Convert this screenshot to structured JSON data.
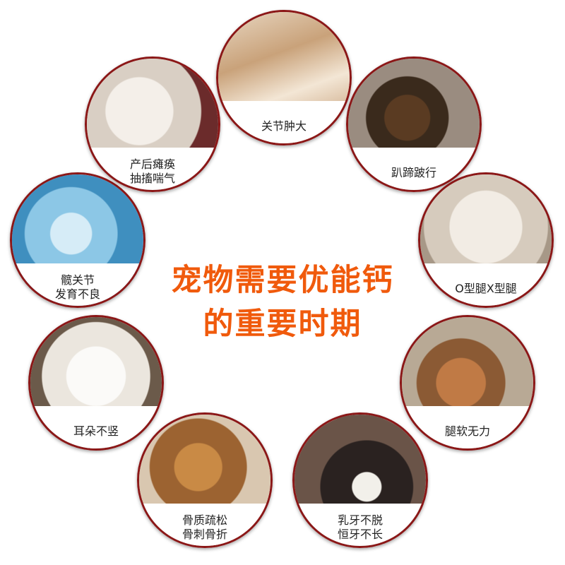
{
  "title": {
    "line1": "宠物需要优能钙",
    "line2": "的重要时期"
  },
  "colors": {
    "title": "#f05a0c",
    "ring": "#8b1717",
    "caption": "#222222"
  },
  "items": [
    {
      "id": "joint",
      "lines": [
        "关节肿大"
      ]
    },
    {
      "id": "walk",
      "lines": [
        "趴蹄跛行"
      ]
    },
    {
      "id": "oleg",
      "lines": [
        "O型腿X型腿"
      ]
    },
    {
      "id": "soft",
      "lines": [
        "腿软无力"
      ]
    },
    {
      "id": "teeth",
      "lines": [
        "乳牙不脱",
        "恒牙不长"
      ]
    },
    {
      "id": "bone",
      "lines": [
        "骨质疏松",
        "骨刺骨折"
      ]
    },
    {
      "id": "ear",
      "lines": [
        "耳朵不竖"
      ]
    },
    {
      "id": "hip",
      "lines": [
        "髋关节",
        "发育不良"
      ]
    },
    {
      "id": "postpartum",
      "lines": [
        "产后瘫痪",
        "抽搐喘气"
      ]
    }
  ]
}
